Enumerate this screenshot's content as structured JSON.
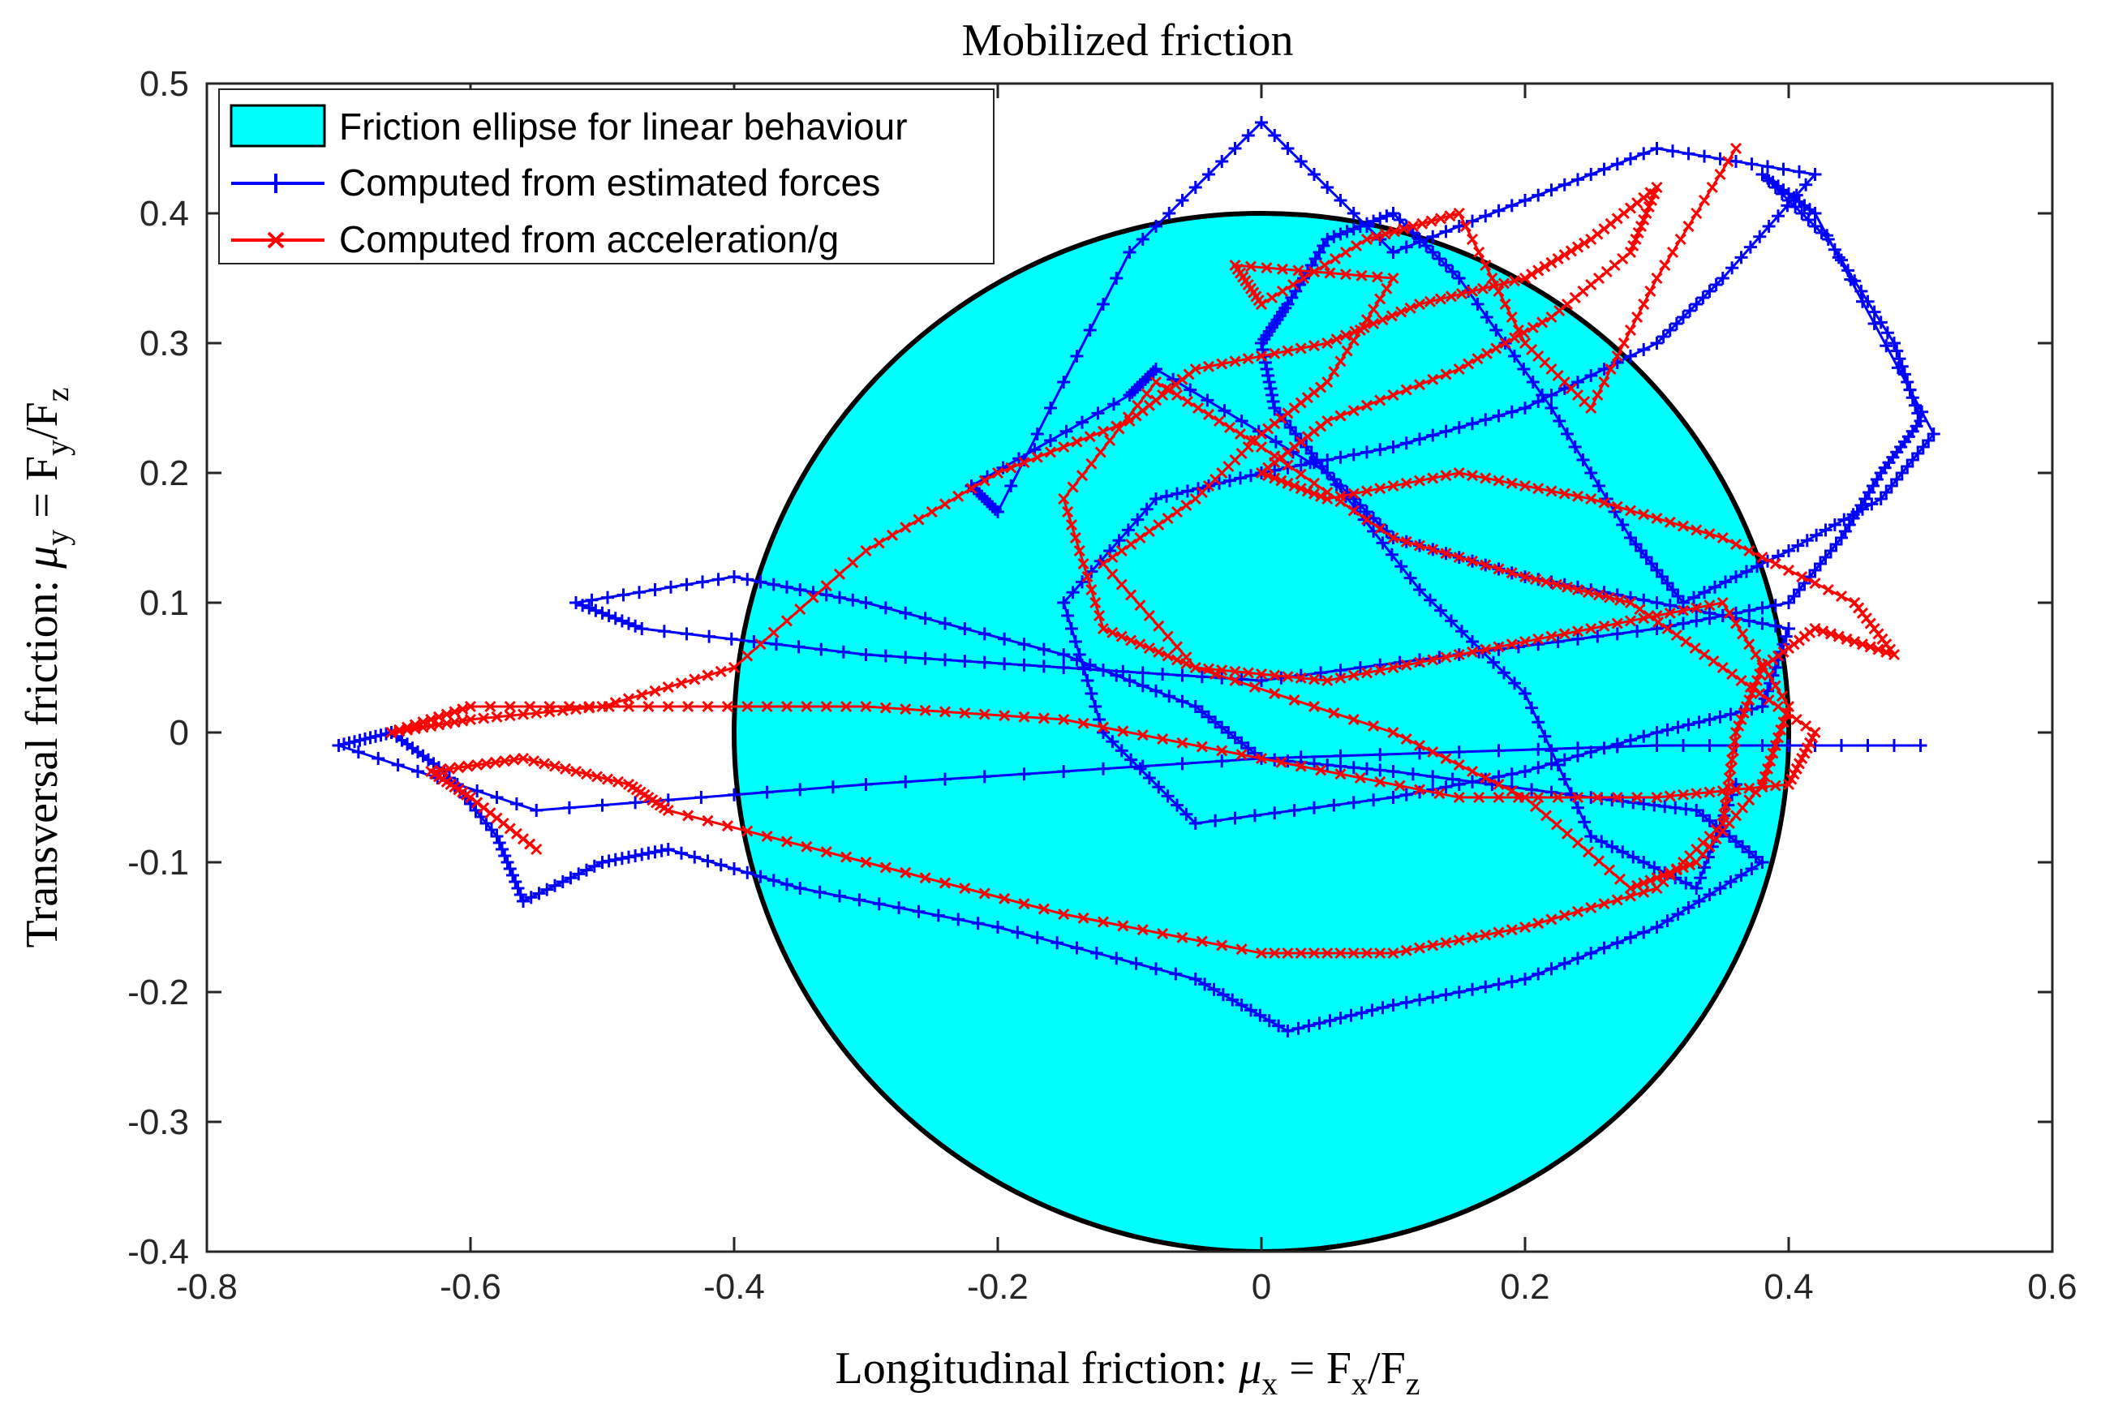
{
  "chart_data": {
    "type": "line",
    "title": "Mobilized friction",
    "xlabel": "Longitudinal friction: μx = Fx/Fz",
    "ylabel": "Transversal friction: μy = Fy/Fz",
    "xlabel_parts": {
      "prefix": "Longitudinal friction: ",
      "mu": "μ",
      "sub1": "x",
      "eq": " = F",
      "sub2": "x",
      "slash": "/F",
      "sub3": "z"
    },
    "ylabel_parts": {
      "prefix": "Transversal friction: ",
      "mu": "μ",
      "sub1": "y",
      "eq": " = F",
      "sub2": "y",
      "slash": "/F",
      "sub3": "z"
    },
    "xlim": [
      -0.8,
      0.6
    ],
    "ylim": [
      -0.4,
      0.5
    ],
    "xticks": [
      -0.8,
      -0.6,
      -0.4,
      -0.2,
      0,
      0.2,
      0.4,
      0.6
    ],
    "xtick_labels": [
      "-0.8",
      "-0.6",
      "-0.4",
      "-0.2",
      "0",
      "0.2",
      "0.4",
      "0.6"
    ],
    "yticks": [
      -0.4,
      -0.3,
      -0.2,
      -0.1,
      0,
      0.1,
      0.2,
      0.3,
      0.4,
      0.5
    ],
    "ytick_labels": [
      "-0.4",
      "-0.3",
      "-0.2",
      "-0.1",
      "0",
      "0.1",
      "0.2",
      "0.3",
      "0.4",
      "0.5"
    ],
    "grid": false,
    "legend_position": "top-left",
    "ellipse": {
      "name": "Friction ellipse for linear behaviour",
      "cx": 0,
      "cy": 0,
      "rx": 0.4,
      "ry": 0.4,
      "fill": "#00ffff",
      "stroke": "#000000"
    },
    "series": [
      {
        "name": "Computed from estimated forces",
        "color": "#0000ff",
        "marker": "+",
        "x": [
          0.5,
          0.3,
          0.0,
          -0.3,
          -0.55,
          -0.7,
          -0.66,
          -0.62,
          -0.58,
          -0.56,
          -0.5,
          -0.45,
          -0.35,
          -0.2,
          -0.05,
          0.02,
          0.1,
          0.2,
          0.3,
          0.38,
          0.33,
          0.25,
          0.1,
          0.0,
          -0.05,
          -0.15,
          -0.3,
          -0.4,
          -0.52,
          -0.47,
          -0.3,
          -0.15,
          0.0,
          0.15,
          0.3,
          0.4,
          0.44,
          0.47,
          0.5,
          0.48,
          0.43,
          0.38,
          0.42,
          0.51,
          0.47,
          0.4,
          0.32,
          0.28,
          0.22,
          0.15,
          0.1,
          0.05,
          0.02,
          0.0,
          0.01,
          0.05,
          0.1,
          0.2,
          0.3,
          0.4,
          0.38,
          0.3,
          0.2,
          0.1,
          -0.05,
          -0.12,
          -0.15,
          -0.08,
          0.0,
          0.1,
          0.2,
          0.3,
          0.35,
          0.42,
          0.3,
          0.2,
          0.1,
          0.0,
          -0.1,
          -0.2,
          -0.22,
          -0.1,
          -0.08,
          0.05,
          0.12,
          0.2,
          0.25,
          0.33,
          0.36
        ],
        "y": [
          -0.01,
          -0.01,
          -0.02,
          -0.04,
          -0.06,
          -0.01,
          -0.0,
          -0.03,
          -0.08,
          -0.13,
          -0.1,
          -0.09,
          -0.12,
          -0.15,
          -0.19,
          -0.23,
          -0.21,
          -0.19,
          -0.15,
          -0.1,
          -0.06,
          -0.05,
          -0.03,
          -0.02,
          0.02,
          0.06,
          0.1,
          0.12,
          0.1,
          0.08,
          0.06,
          0.05,
          0.04,
          0.06,
          0.08,
          0.1,
          0.15,
          0.2,
          0.24,
          0.3,
          0.38,
          0.43,
          0.4,
          0.23,
          0.18,
          0.14,
          0.1,
          0.15,
          0.25,
          0.35,
          0.4,
          0.38,
          0.33,
          0.3,
          0.25,
          0.2,
          0.15,
          0.12,
          0.1,
          0.08,
          0.02,
          0.0,
          -0.03,
          -0.05,
          -0.07,
          0.0,
          0.1,
          0.18,
          0.2,
          0.22,
          0.25,
          0.3,
          0.35,
          0.43,
          0.45,
          0.41,
          0.37,
          0.47,
          0.37,
          0.17,
          0.19,
          0.26,
          0.28,
          0.2,
          0.11,
          0.03,
          -0.08,
          -0.12,
          -0.04
        ]
      },
      {
        "name": "Computed from acceleration/g",
        "color": "#ff0000",
        "marker": "x",
        "x": [
          -0.55,
          -0.6,
          -0.63,
          -0.56,
          -0.48,
          -0.45,
          -0.3,
          -0.15,
          0.0,
          0.1,
          0.2,
          0.3,
          0.35,
          0.36,
          0.38,
          0.42,
          0.48,
          0.45,
          0.35,
          0.25,
          0.15,
          0.05,
          0.0,
          0.05,
          0.15,
          0.22,
          0.28,
          0.3,
          0.25,
          0.2,
          0.12,
          0.05,
          -0.05,
          -0.1,
          -0.2,
          -0.3,
          -0.4,
          -0.5,
          -0.6,
          -0.66,
          -0.6,
          -0.45,
          -0.3,
          -0.15,
          0.0,
          0.15,
          0.3,
          0.4,
          0.42,
          0.35,
          0.28,
          0.2,
          0.1,
          0.0,
          -0.08,
          -0.15,
          -0.12,
          -0.05,
          0.05,
          0.15,
          0.25,
          0.35,
          0.4,
          0.38,
          0.33,
          0.28,
          0.2,
          0.1,
          -0.05,
          -0.12,
          -0.05,
          0.0,
          0.05,
          0.1,
          -0.02,
          0.0,
          0.08,
          0.15,
          0.2,
          0.25,
          0.3,
          0.36
        ],
        "y": [
          -0.09,
          -0.05,
          -0.03,
          -0.02,
          -0.04,
          -0.06,
          -0.1,
          -0.14,
          -0.17,
          -0.17,
          -0.15,
          -0.12,
          -0.07,
          -0.0,
          0.05,
          0.08,
          0.06,
          0.1,
          0.15,
          0.18,
          0.2,
          0.18,
          0.2,
          0.24,
          0.28,
          0.32,
          0.37,
          0.42,
          0.38,
          0.35,
          0.33,
          0.3,
          0.28,
          0.24,
          0.2,
          0.14,
          0.05,
          0.02,
          0.01,
          0.0,
          0.02,
          0.02,
          0.02,
          0.01,
          -0.02,
          -0.05,
          -0.05,
          -0.04,
          0.0,
          0.05,
          0.1,
          0.12,
          0.15,
          0.22,
          0.27,
          0.18,
          0.08,
          0.05,
          0.04,
          0.06,
          0.08,
          0.1,
          0.02,
          -0.04,
          -0.1,
          -0.12,
          -0.05,
          0.0,
          0.05,
          0.13,
          0.18,
          0.23,
          0.27,
          0.35,
          0.36,
          0.33,
          0.38,
          0.4,
          0.3,
          0.25,
          0.35,
          0.45
        ]
      }
    ]
  }
}
